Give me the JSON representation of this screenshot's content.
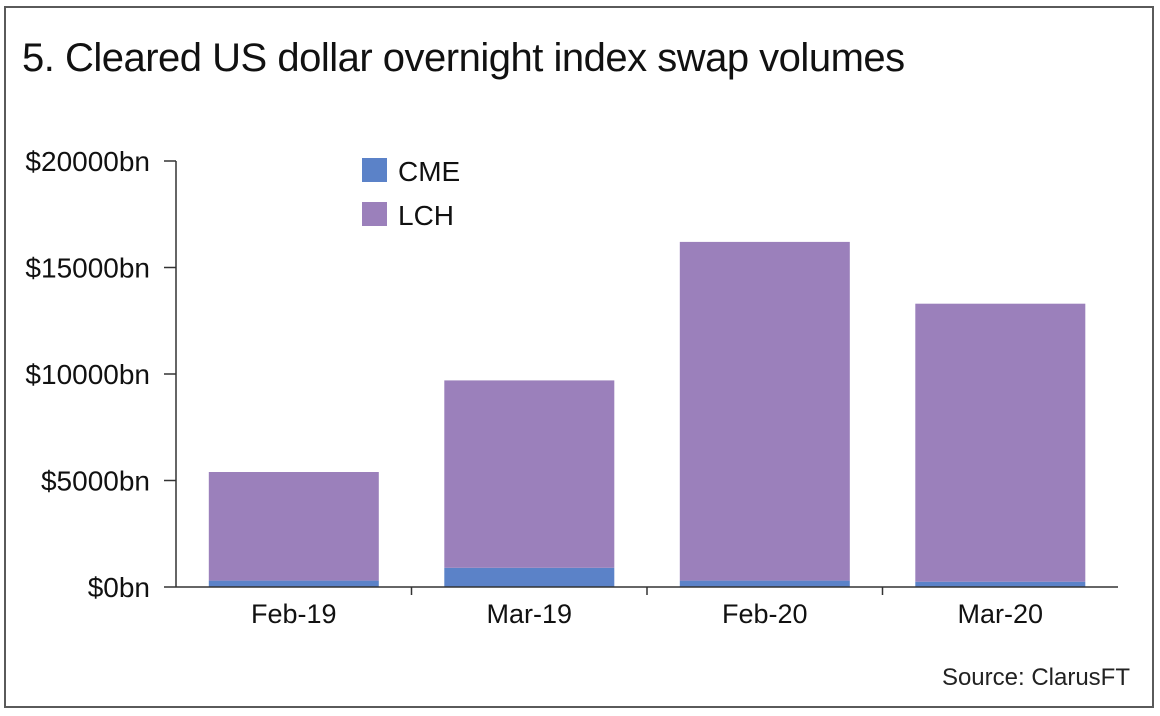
{
  "chart_data": {
    "type": "bar",
    "stacked": true,
    "title": "5. Cleared US dollar overnight index swap volumes",
    "categories": [
      "Feb-19",
      "Mar-19",
      "Feb-20",
      "Mar-20"
    ],
    "series": [
      {
        "name": "CME",
        "color": "#5b82c8",
        "values": [
          300,
          900,
          300,
          250
        ]
      },
      {
        "name": "LCH",
        "color": "#9b80bb",
        "values": [
          5100,
          8800,
          15900,
          13050
        ]
      }
    ],
    "ylim": [
      0,
      20000
    ],
    "yticks": [
      0,
      5000,
      10000,
      15000,
      20000
    ],
    "ytick_labels": [
      "$0bn",
      "$5000bn",
      "$10000bn",
      "$15000bn",
      "$20000bn"
    ],
    "xlabel": "",
    "ylabel": "",
    "legend_position": "top-left",
    "grid": false
  },
  "source": "Source: ClarusFT"
}
